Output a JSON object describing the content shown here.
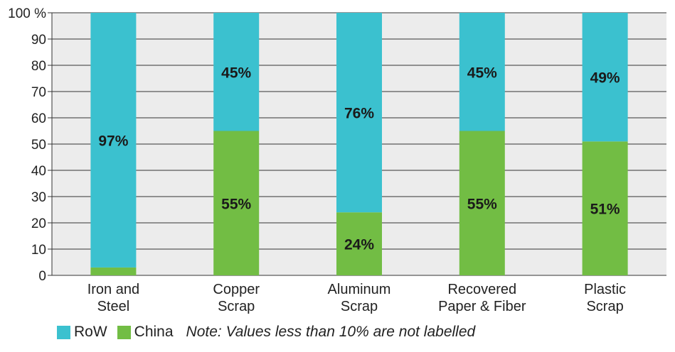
{
  "chart_data": {
    "type": "bar",
    "stacked": true,
    "categories": [
      [
        "Iron and",
        "Steel"
      ],
      [
        "Copper",
        "Scrap"
      ],
      [
        "Aluminum",
        "Scrap"
      ],
      [
        "Recovered",
        "Paper & Fiber"
      ],
      [
        "Plastic",
        "Scrap"
      ]
    ],
    "series": [
      {
        "name": "China",
        "color": "#72bd44",
        "values": [
          3,
          55,
          24,
          55,
          51
        ],
        "labels": [
          "",
          "55%",
          "24%",
          "55%",
          "51%"
        ]
      },
      {
        "name": "RoW",
        "color": "#3bc1cf",
        "values": [
          97,
          45,
          76,
          45,
          49
        ],
        "labels": [
          "97%",
          "45%",
          "76%",
          "45%",
          "49%"
        ]
      }
    ],
    "ylim": [
      0,
      100
    ],
    "yticks": [
      "0",
      "10",
      "20",
      "30",
      "40",
      "50",
      "60",
      "70",
      "80",
      "90",
      "100 %"
    ],
    "grid": true,
    "plot_background": "#ececec",
    "legend_order": [
      "RoW",
      "China"
    ],
    "legend_position": "bottom-left",
    "note": "Note: Values less than 10% are not labelled"
  }
}
